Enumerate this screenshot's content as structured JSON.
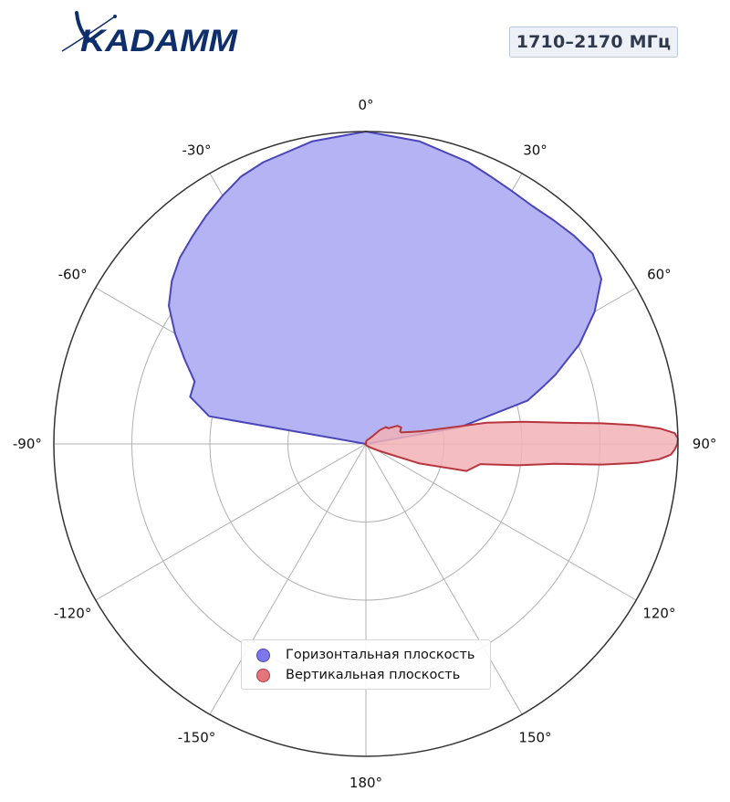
{
  "logo": {
    "text": "KADAMM"
  },
  "badge": {
    "label": "1710–2170 МГц"
  },
  "colors": {
    "horizontal_fill": "#b4b4f4",
    "horizontal_stroke": "#4a45b8",
    "vertical_fill": "#f2b2b6",
    "vertical_stroke": "#b7353f",
    "logo": "#0e2f6b"
  },
  "chart_data": {
    "type": "polar",
    "title": "",
    "theta_direction": "clockwise",
    "theta_zero": "top",
    "angle_ticks": [
      "0°",
      "30°",
      "60°",
      "90°",
      "120°",
      "150°",
      "180°",
      "-150°",
      "-120°",
      "-90°",
      "-60°",
      "-30°"
    ],
    "radial_rings": 4,
    "r_range": [
      0,
      1
    ],
    "grid": true,
    "legend_position": "bottom-center",
    "series": [
      {
        "name": "Горизонтальная плоскость",
        "angles": [
          -90,
          -80,
          -75,
          -70,
          -65,
          -60,
          -55,
          -50,
          -45,
          -40,
          -35,
          -30,
          -25,
          -20,
          -10,
          0,
          10,
          20,
          25,
          30,
          35,
          40,
          45,
          50,
          55,
          60,
          65,
          70,
          72,
          75,
          80,
          90
        ],
        "r": [
          0.0,
          0.51,
          0.583,
          0.584,
          0.641,
          0.706,
          0.771,
          0.812,
          0.843,
          0.866,
          0.892,
          0.918,
          0.945,
          0.96,
          0.984,
          1.0,
          0.984,
          0.96,
          0.945,
          0.935,
          0.93,
          0.935,
          0.943,
          0.948,
          0.921,
          0.846,
          0.755,
          0.646,
          0.599,
          0.536,
          0.305,
          0.0
        ]
      },
      {
        "name": "Вертикальная плоскость",
        "angles": [
          0,
          5,
          10,
          20,
          30,
          40,
          45,
          50,
          55,
          60,
          65,
          70,
          72,
          75,
          77,
          78,
          80,
          82,
          84,
          85,
          86,
          87,
          88,
          89,
          90,
          91,
          92,
          93,
          94,
          95,
          96,
          98,
          100,
          105,
          110,
          115,
          120,
          130,
          140,
          150,
          160,
          170,
          180
        ],
        "r": [
          0.0,
          0.007,
          0.01,
          0.014,
          0.018,
          0.031,
          0.062,
          0.084,
          0.087,
          0.116,
          0.125,
          0.117,
          0.119,
          0.148,
          0.181,
          0.212,
          0.393,
          0.509,
          0.646,
          0.757,
          0.863,
          0.944,
          0.99,
          1.0,
          0.998,
          0.99,
          0.978,
          0.941,
          0.871,
          0.758,
          0.61,
          0.491,
          0.372,
          0.334,
          0.183,
          0.066,
          0.037,
          0.017,
          0.01,
          0.006,
          0.004,
          0.002,
          0.0
        ]
      }
    ]
  }
}
